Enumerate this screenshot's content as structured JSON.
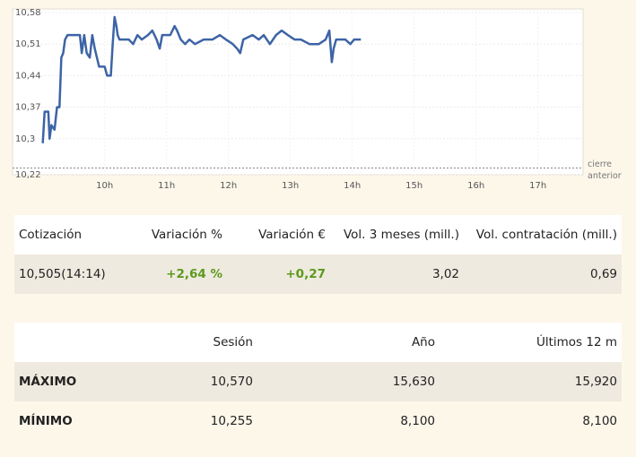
{
  "chart_data": {
    "type": "line",
    "x": [
      9.0,
      9.03,
      9.09,
      9.11,
      9.14,
      9.19,
      9.23,
      9.27,
      9.3,
      9.33,
      9.36,
      9.4,
      9.6,
      9.63,
      9.67,
      9.71,
      9.76,
      9.8,
      9.84,
      9.91,
      10,
      10.04,
      10.1,
      10.13,
      10.16,
      10.19,
      10.21,
      10.24,
      10.39,
      10.46,
      10.53,
      10.6,
      10.7,
      10.77,
      10.84,
      10.89,
      10.93,
      11.06,
      11.13,
      11.17,
      11.23,
      11.3,
      11.37,
      11.46,
      11.6,
      11.74,
      11.86,
      11.96,
      12.07,
      12.14,
      12.19,
      12.24,
      12.39,
      12.49,
      12.57,
      12.67,
      12.77,
      12.86,
      12.96,
      13.07,
      13.17,
      13.31,
      13.46,
      13.57,
      13.63,
      13.67,
      13.7,
      13.74,
      13.89,
      13.97,
      14.03,
      14.14
    ],
    "values": [
      10.29,
      10.36,
      10.36,
      10.3,
      10.33,
      10.32,
      10.37,
      10.37,
      10.48,
      10.49,
      10.52,
      10.53,
      10.53,
      10.49,
      10.53,
      10.49,
      10.48,
      10.53,
      10.5,
      10.46,
      10.46,
      10.44,
      10.44,
      10.51,
      10.57,
      10.55,
      10.53,
      10.52,
      10.52,
      10.51,
      10.53,
      10.52,
      10.53,
      10.54,
      10.52,
      10.5,
      10.53,
      10.53,
      10.55,
      10.54,
      10.52,
      10.51,
      10.52,
      10.51,
      10.52,
      10.52,
      10.53,
      10.52,
      10.51,
      10.5,
      10.49,
      10.52,
      10.53,
      10.52,
      10.53,
      10.51,
      10.53,
      10.54,
      10.53,
      10.52,
      10.52,
      10.51,
      10.51,
      10.52,
      10.54,
      10.47,
      10.5,
      10.52,
      10.52,
      10.51,
      10.52,
      10.52
    ],
    "color": "#3d64a6",
    "xlim": [
      8.57,
      17.73
    ],
    "xticks": [
      {
        "value": 10,
        "label": "10h"
      },
      {
        "value": 11,
        "label": "11h"
      },
      {
        "value": 12,
        "label": "12h"
      },
      {
        "value": 13,
        "label": "13h"
      },
      {
        "value": 14,
        "label": "14h"
      },
      {
        "value": 15,
        "label": "15h"
      },
      {
        "value": 16,
        "label": "16h"
      },
      {
        "value": 17,
        "label": "17h"
      }
    ],
    "ylim": [
      10.22,
      10.58
    ],
    "yticks": [
      {
        "value": 10.22,
        "label": "10,22"
      },
      {
        "value": 10.3,
        "label": "10,3"
      },
      {
        "value": 10.37,
        "label": "10,37"
      },
      {
        "value": 10.44,
        "label": "10,44"
      },
      {
        "value": 10.51,
        "label": "10,51"
      },
      {
        "value": 10.58,
        "label": "10,58"
      }
    ],
    "reference_line": {
      "value": 10.235,
      "label": "cierre anterior"
    },
    "grid": true
  },
  "quote_table": {
    "headers": [
      "Cotización",
      "Variación %",
      "Variación €",
      "Vol. 3 meses (mill.)",
      "Vol. contratación (mill.)"
    ],
    "rows": [
      [
        "10,505(14:14)",
        "+2,64 %",
        "+0,27",
        "3,02",
        "0,69"
      ]
    ]
  },
  "range_table": {
    "headers": [
      "Sesión",
      "Año",
      "Últimos 12 m"
    ],
    "rows": [
      {
        "label": "MÁXIMO",
        "values": [
          "10,570",
          "15,630",
          "15,920"
        ]
      },
      {
        "label": "MÍNIMO",
        "values": [
          "10,255",
          "8,100",
          "8,100"
        ]
      }
    ]
  }
}
